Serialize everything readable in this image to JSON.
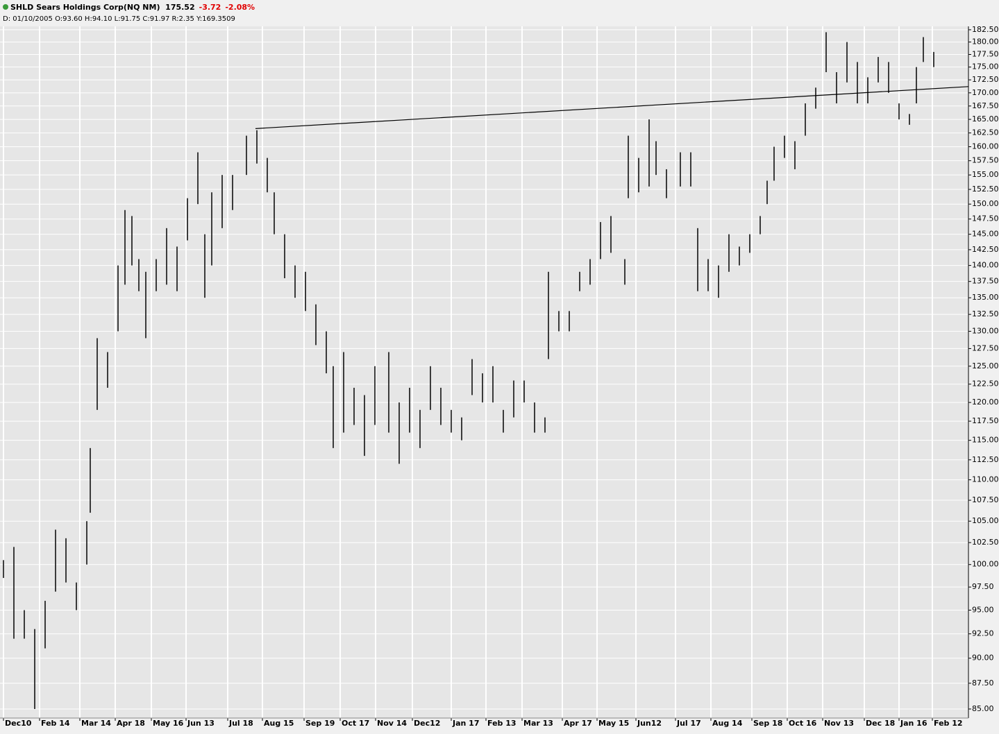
{
  "header": {
    "symbol": "SHLD Sears Holdings Corp(NQ NM)",
    "last": "175.52",
    "change": "-3.72",
    "change_pct": "-2.08%",
    "info": "D: 01/10/2005 O:93.60 H:94.10 L:91.75 C:91.97 R:2.35 Y:169.3509"
  },
  "chart_data": {
    "type": "ohlc",
    "log": true,
    "grid": true,
    "color": "#000000",
    "grid_color": "#ffffff",
    "background": "#e6e6e6",
    "x": [
      1,
      4,
      7,
      10,
      13,
      16,
      19,
      22,
      25,
      26,
      28,
      31,
      34,
      36,
      38,
      40,
      42,
      45,
      48,
      51,
      54,
      57,
      59,
      61,
      64,
      67,
      71,
      74,
      77,
      79,
      82,
      85,
      88,
      91,
      94,
      96,
      99,
      102,
      105,
      108,
      112,
      115,
      118,
      121,
      124,
      127,
      130,
      133,
      136,
      139,
      142,
      145,
      148,
      151,
      154,
      157,
      158,
      161,
      164,
      167,
      170,
      173,
      176,
      180,
      181,
      184,
      187,
      189,
      192,
      196,
      199,
      201,
      204,
      207,
      210,
      213,
      216,
      219,
      221,
      223,
      226,
      229,
      232,
      235,
      238,
      241,
      244,
      247,
      250,
      253,
      256,
      259,
      262,
      264,
      266,
      269
    ],
    "high": [
      100.5,
      102,
      95,
      93,
      96,
      104,
      103,
      98,
      105,
      114,
      129,
      127,
      140,
      149,
      148,
      141,
      139,
      141,
      146,
      143,
      151,
      159,
      145,
      152,
      155,
      155,
      162,
      163,
      158,
      152,
      145,
      140,
      139,
      134,
      130,
      125,
      127,
      122,
      121,
      125,
      127,
      120,
      122,
      119,
      125,
      122,
      119,
      118,
      126,
      124,
      125,
      119,
      123,
      123,
      120,
      118,
      139,
      133,
      133,
      139,
      141,
      147,
      148,
      141,
      162,
      158,
      165,
      161,
      156,
      159,
      159,
      146,
      141,
      140,
      145,
      143,
      145,
      148,
      154,
      160,
      162,
      161,
      168,
      171,
      182,
      174,
      180,
      176,
      173,
      177,
      176,
      168,
      166,
      175,
      181,
      178
    ],
    "low": [
      98.5,
      92,
      92,
      85,
      91,
      97,
      98,
      95,
      100,
      106,
      119,
      122,
      130,
      137,
      140,
      136,
      129,
      136,
      137,
      136,
      144,
      150,
      135,
      140,
      146,
      149,
      155,
      157,
      152,
      145,
      138,
      135,
      133,
      128,
      124,
      114,
      116,
      117,
      113,
      117,
      116,
      112,
      116,
      114,
      119,
      117,
      116,
      115,
      121,
      120,
      120,
      116,
      118,
      120,
      116,
      116,
      126,
      130,
      130,
      136,
      137,
      141,
      142,
      137,
      151,
      152,
      153,
      155,
      151,
      153,
      153,
      136,
      136,
      135,
      139,
      140,
      142,
      145,
      150,
      154,
      158,
      156,
      162,
      167,
      174,
      168,
      172,
      168,
      168,
      172,
      170,
      165,
      164,
      168,
      176,
      175
    ],
    "trendline": {
      "x": [
        73.6,
        279
      ],
      "values": [
        163.3,
        171.2
      ]
    },
    "xlim": [
      0,
      279
    ],
    "ylim": [
      84.14,
      183.2
    ],
    "xticks": [
      {
        "value": 1,
        "label": "Dec10"
      },
      {
        "value": 11.4,
        "label": "Feb 14"
      },
      {
        "value": 23,
        "label": "Mar 14"
      },
      {
        "value": 33.2,
        "label": "Apr 18"
      },
      {
        "value": 43.6,
        "label": "May 16"
      },
      {
        "value": 53.6,
        "label": "Jun 13"
      },
      {
        "value": 65.6,
        "label": "Jul 18"
      },
      {
        "value": 75.6,
        "label": "Aug 15"
      },
      {
        "value": 87.6,
        "label": "Sep 19"
      },
      {
        "value": 98,
        "label": "Oct 17"
      },
      {
        "value": 108.2,
        "label": "Nov 14"
      },
      {
        "value": 118.8,
        "label": "Dec12"
      },
      {
        "value": 130,
        "label": "Jan 17"
      },
      {
        "value": 140,
        "label": "Feb 13"
      },
      {
        "value": 150.4,
        "label": "Mar 13"
      },
      {
        "value": 162,
        "label": "Apr 17"
      },
      {
        "value": 172,
        "label": "May 15"
      },
      {
        "value": 183.2,
        "label": "Jun12"
      },
      {
        "value": 194.6,
        "label": "Jul 17"
      },
      {
        "value": 204.8,
        "label": "Aug 14"
      },
      {
        "value": 216.6,
        "label": "Sep 18"
      },
      {
        "value": 226.8,
        "label": "Oct 16"
      },
      {
        "value": 237,
        "label": "Nov 13"
      },
      {
        "value": 249,
        "label": "Dec 18"
      },
      {
        "value": 259,
        "label": "Jan 16"
      },
      {
        "value": 268.6,
        "label": "Feb 12"
      }
    ],
    "yticks": [
      {
        "value": 85,
        "label": "85.00"
      },
      {
        "value": 87.5,
        "label": "87.50"
      },
      {
        "value": 90,
        "label": "90.00"
      },
      {
        "value": 92.5,
        "label": "92.50"
      },
      {
        "value": 95,
        "label": "95.00"
      },
      {
        "value": 97.5,
        "label": "97.50"
      },
      {
        "value": 100,
        "label": "100.00"
      },
      {
        "value": 102.5,
        "label": "102.50"
      },
      {
        "value": 105,
        "label": "105.00"
      },
      {
        "value": 107.5,
        "label": "107.50"
      },
      {
        "value": 110,
        "label": "110.00"
      },
      {
        "value": 112.5,
        "label": "112.50"
      },
      {
        "value": 115,
        "label": "115.00"
      },
      {
        "value": 117.5,
        "label": "117.50"
      },
      {
        "value": 120,
        "label": "120.00"
      },
      {
        "value": 122.5,
        "label": "122.50"
      },
      {
        "value": 125,
        "label": "125.00"
      },
      {
        "value": 127.5,
        "label": "127.50"
      },
      {
        "value": 130,
        "label": "130.00"
      },
      {
        "value": 132.5,
        "label": "132.50"
      },
      {
        "value": 135,
        "label": "135.00"
      },
      {
        "value": 137.5,
        "label": "137.50"
      },
      {
        "value": 140,
        "label": "140.00"
      },
      {
        "value": 142.5,
        "label": "142.50"
      },
      {
        "value": 145,
        "label": "145.00"
      },
      {
        "value": 147.5,
        "label": "147.50"
      },
      {
        "value": 150,
        "label": "150.00"
      },
      {
        "value": 152.5,
        "label": "152.50"
      },
      {
        "value": 155,
        "label": "155.00"
      },
      {
        "value": 157.5,
        "label": "157.50"
      },
      {
        "value": 160,
        "label": "160.00"
      },
      {
        "value": 162.5,
        "label": "162.50"
      },
      {
        "value": 165,
        "label": "165.00"
      },
      {
        "value": 167.5,
        "label": "167.50"
      },
      {
        "value": 170,
        "label": "170.00"
      },
      {
        "value": 172.5,
        "label": "172.50"
      },
      {
        "value": 175,
        "label": "175.00"
      },
      {
        "value": 177.5,
        "label": "177.50"
      },
      {
        "value": 180,
        "label": "180.00"
      },
      {
        "value": 182.5,
        "label": "182.50"
      }
    ]
  }
}
